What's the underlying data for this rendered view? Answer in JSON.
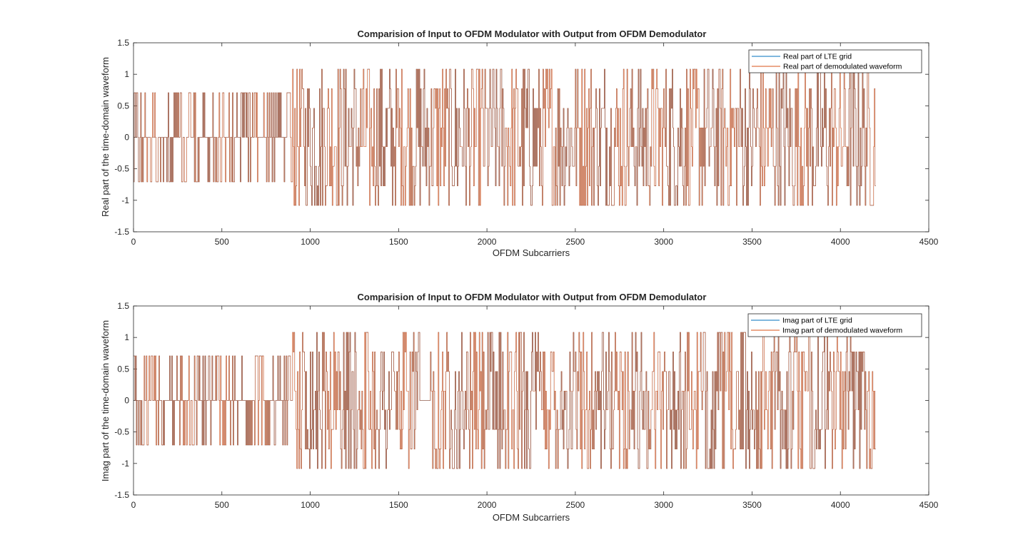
{
  "chart_data": [
    {
      "type": "line",
      "title": "Comparision of Input to OFDM Modulator with Output from OFDM Demodulator",
      "xlabel": "OFDM Subcarriers",
      "ylabel": "Real part of the time-domain waveform",
      "xlim": [
        0,
        4500
      ],
      "ylim": [
        -1.5,
        1.5
      ],
      "xticks": [
        0,
        500,
        1000,
        1500,
        2000,
        2500,
        3000,
        3500,
        4000,
        4500
      ],
      "yticks": [
        -1.5,
        -1,
        -0.5,
        0,
        0.5,
        1,
        1.5
      ],
      "xtick_labels": [
        "0",
        "500",
        "1000",
        "1500",
        "2000",
        "2500",
        "3000",
        "3500",
        "4000",
        "4500"
      ],
      "ytick_labels": [
        "-1.5",
        "-1",
        "-0.5",
        "0",
        "0.5",
        "1",
        "1.5"
      ],
      "legend_position": "top-right",
      "grid": false,
      "series": [
        {
          "name": "Real part of LTE grid",
          "color": "#0072bd"
        },
        {
          "name": "Real part of demodulated waveform",
          "color": "#d95319"
        }
      ],
      "segments": [
        {
          "x": [
            0,
            900
          ],
          "levels": [
            -0.707,
            0,
            0.707
          ]
        },
        {
          "x": [
            900,
            4200
          ],
          "levels": [
            -1.08,
            -0.77,
            -0.46,
            -0.15,
            0.15,
            0.46,
            0.77,
            1.08
          ]
        }
      ]
    },
    {
      "type": "line",
      "title": "Comparision of Input to OFDM Modulator with Output from OFDM Demodulator",
      "xlabel": "OFDM Subcarriers",
      "ylabel": "Imag part of the time-domain waveform",
      "xlim": [
        0,
        4500
      ],
      "ylim": [
        -1.5,
        1.5
      ],
      "xticks": [
        0,
        500,
        1000,
        1500,
        2000,
        2500,
        3000,
        3500,
        4000,
        4500
      ],
      "yticks": [
        -1.5,
        -1,
        -0.5,
        0,
        0.5,
        1,
        1.5
      ],
      "xtick_labels": [
        "0",
        "500",
        "1000",
        "1500",
        "2000",
        "2500",
        "3000",
        "3500",
        "4000",
        "4500"
      ],
      "ytick_labels": [
        "-1.5",
        "-1",
        "-0.5",
        "0",
        "0.5",
        "1",
        "1.5"
      ],
      "legend_position": "top-right",
      "grid": false,
      "series": [
        {
          "name": "Imag part of LTE grid",
          "color": "#0072bd"
        },
        {
          "name": "Imag part of demodulated waveform",
          "color": "#d95319"
        }
      ],
      "segments": [
        {
          "x": [
            0,
            900
          ],
          "levels": [
            -0.707,
            0,
            0.707
          ]
        },
        {
          "x": [
            900,
            1620
          ],
          "levels": [
            -1.08,
            -0.77,
            -0.46,
            -0.15,
            0.15,
            0.46,
            0.77,
            1.08
          ]
        },
        {
          "x": [
            1620,
            1680
          ],
          "levels": [
            0
          ]
        },
        {
          "x": [
            1680,
            4200
          ],
          "levels": [
            -1.08,
            -0.77,
            -0.46,
            -0.15,
            0.15,
            0.46,
            0.77,
            1.08
          ]
        }
      ]
    }
  ]
}
